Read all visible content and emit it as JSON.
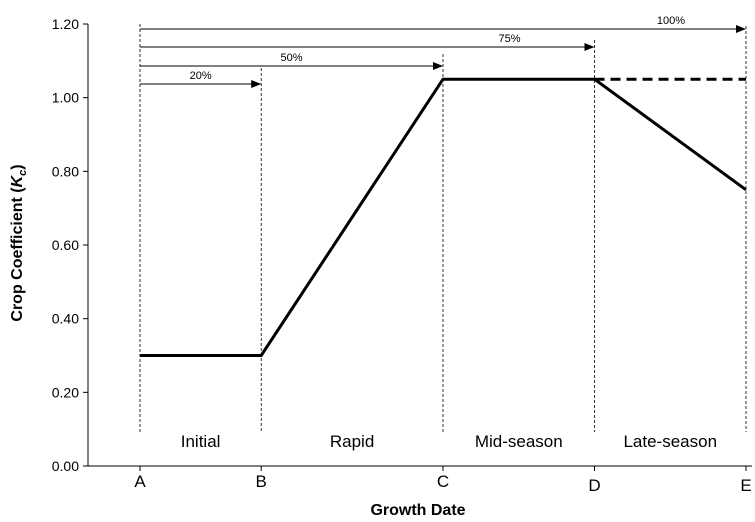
{
  "chart_data": {
    "type": "line",
    "title": "",
    "xlabel": "Growth Date",
    "ylabel": {
      "main": "Crop Coefficient (",
      "symbol": "K",
      "subscript": "c",
      "close": ")"
    },
    "ylim": [
      0,
      1.2
    ],
    "yticks": [
      "0.00",
      "0.20",
      "0.40",
      "0.60",
      "0.80",
      "1.00",
      "1.20"
    ],
    "xticks": [
      {
        "label": "A",
        "x": 0
      },
      {
        "label": "B",
        "x": 20
      },
      {
        "label": "C",
        "x": 50
      },
      {
        "label": "D",
        "x": 75
      },
      {
        "label": "E",
        "x": 100
      }
    ],
    "xlim": [
      0,
      100
    ],
    "series": [
      {
        "style": "solid",
        "x": [
          0,
          20,
          50,
          75,
          100
        ],
        "y": [
          0.3,
          0.3,
          1.05,
          1.05,
          0.75
        ]
      },
      {
        "style": "dashed",
        "x": [
          75,
          100
        ],
        "y": [
          1.05,
          1.05
        ]
      }
    ],
    "stages": [
      {
        "label": "Initial",
        "x_start": 0,
        "x_end": 20
      },
      {
        "label": "Rapid",
        "x_start": 20,
        "x_end": 50
      },
      {
        "label": "Mid-season",
        "x_start": 50,
        "x_end": 75
      },
      {
        "label": "Late-season",
        "x_start": 75,
        "x_end": 100
      }
    ],
    "percent_arrows": [
      {
        "label": "20%",
        "x_end": 20
      },
      {
        "label": "50%",
        "x_end": 50
      },
      {
        "label": "75%",
        "x_end": 75
      },
      {
        "label": "100%",
        "x_end": 100
      }
    ],
    "grid": false,
    "legend": "none"
  }
}
